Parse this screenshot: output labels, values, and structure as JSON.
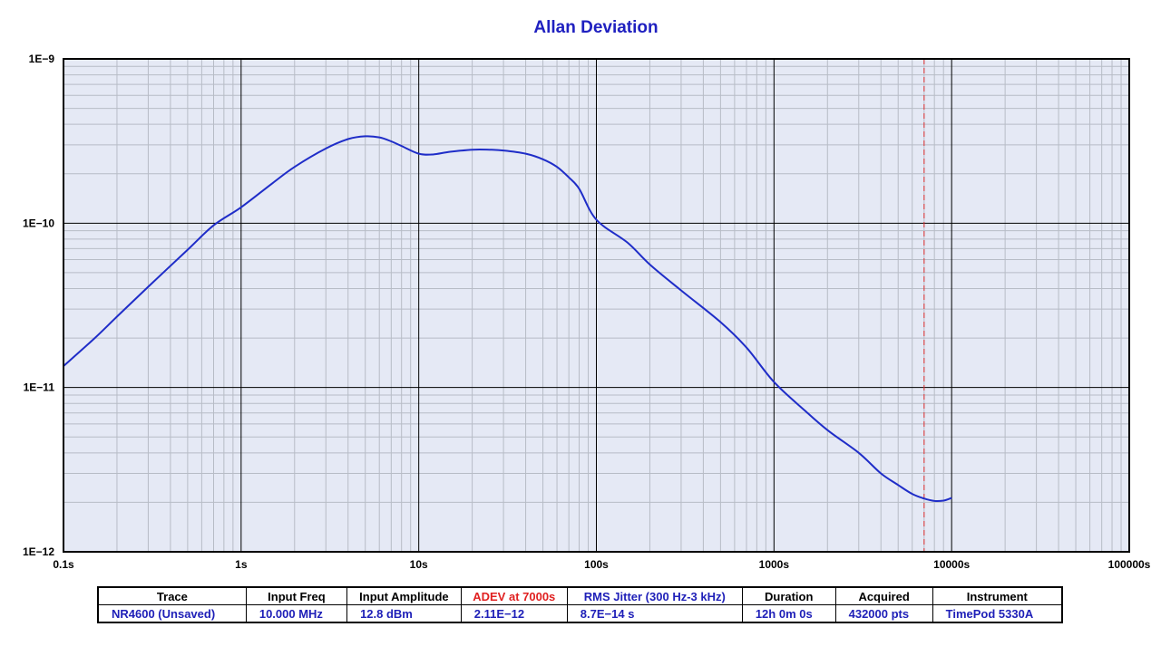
{
  "colors": {
    "title": "#1f20c0",
    "plot_background": "#e5e9f5",
    "grid_major": "#000000",
    "grid_minor": "#b7bcc6",
    "trace": "#1f2dc8",
    "marker": "#e03030",
    "table_value": "#1f20b8",
    "table_highlight": "#e02020"
  },
  "chart_data": {
    "type": "line",
    "title": "Allan Deviation",
    "xscale": "log",
    "yscale": "log",
    "xlim": [
      0.1,
      100000
    ],
    "ylim": [
      1e-12,
      1e-09
    ],
    "grid": true,
    "x_tick_labels": [
      "0.1s",
      "1s",
      "10s",
      "100s",
      "1000s",
      "10000s",
      "100000s"
    ],
    "y_tick_labels": [
      "1E−12",
      "1E−11",
      "1E−10",
      "1E−9"
    ],
    "marker_x": 7000,
    "series": [
      {
        "x": [
          0.1,
          0.15,
          0.2,
          0.3,
          0.5,
          0.7,
          1,
          1.5,
          2,
          3,
          4,
          5,
          6,
          7,
          8,
          10,
          12,
          15,
          20,
          25,
          30,
          40,
          50,
          60,
          70,
          80,
          100,
          150,
          200,
          300,
          500,
          700,
          1000,
          1500,
          2000,
          3000,
          4000,
          5000,
          6000,
          7000,
          8000,
          9000,
          10000
        ],
        "y": [
          1.35e-11,
          2e-11,
          2.7e-11,
          4.1e-11,
          6.9e-11,
          9.7e-11,
          1.25e-10,
          1.75e-10,
          2.2e-10,
          2.85e-10,
          3.25e-10,
          3.38e-10,
          3.33e-10,
          3.15e-10,
          2.95e-10,
          2.65e-10,
          2.62e-10,
          2.72e-10,
          2.8e-10,
          2.8e-10,
          2.77e-10,
          2.65e-10,
          2.45e-10,
          2.2e-10,
          1.9e-10,
          1.62e-10,
          1.05e-10,
          7.6e-11,
          5.6e-11,
          3.9e-11,
          2.5e-11,
          1.75e-11,
          1.08e-11,
          7.2e-12,
          5.5e-12,
          4e-12,
          3e-12,
          2.55e-12,
          2.25e-12,
          2.11e-12,
          2.04e-12,
          2.05e-12,
          2.13e-12
        ]
      }
    ]
  },
  "table": {
    "headers": [
      "Trace",
      "Input Freq",
      "Input Amplitude",
      "ADEV at 7000s",
      "RMS Jitter (300 Hz-3 kHz)",
      "Duration",
      "Acquired",
      "Instrument"
    ],
    "values": [
      "NR4600 (Unsaved)",
      "10.000 MHz",
      "12.8 dBm",
      "2.11E−12",
      "8.7E−14 s",
      "12h 0m 0s",
      "432000 pts",
      "TimePod 5330A"
    ]
  }
}
